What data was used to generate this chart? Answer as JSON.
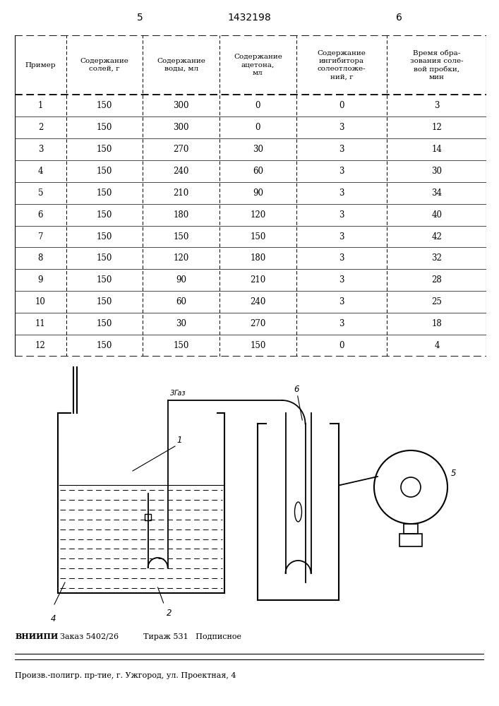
{
  "page_number_left": "5",
  "page_number_center": "1432198",
  "page_number_right": "6",
  "table_headers": [
    "Пример",
    "Содержание\nсолей, г",
    "Содержание\nводы, мл",
    "Содержание\nацетона,\nмл",
    "Содержание\nингибитора\nсолеотложе-\nний, г",
    "Время обра-\nзования соле-\nвой пробки,\nмин"
  ],
  "table_data": [
    [
      "1",
      "150",
      "300",
      "0",
      "0",
      "3"
    ],
    [
      "2",
      "150",
      "300",
      "0",
      "3",
      "12"
    ],
    [
      "3",
      "150",
      "270",
      "30",
      "3",
      "14"
    ],
    [
      "4",
      "150",
      "240",
      "60",
      "3",
      "30"
    ],
    [
      "5",
      "150",
      "210",
      "90",
      "3",
      "34"
    ],
    [
      "6",
      "150",
      "180",
      "120",
      "3",
      "40"
    ],
    [
      "7",
      "150",
      "150",
      "150",
      "3",
      "42"
    ],
    [
      "8",
      "150",
      "120",
      "180",
      "3",
      "32"
    ],
    [
      "9",
      "150",
      "90",
      "210",
      "3",
      "28"
    ],
    [
      "10",
      "150",
      "60",
      "240",
      "3",
      "25"
    ],
    [
      "11",
      "150",
      "30",
      "270",
      "3",
      "18"
    ],
    [
      "12",
      "150",
      "150",
      "150",
      "0",
      "4"
    ]
  ],
  "footer_bold": "ВНИИПИ",
  "footer_line1_rest": "  Заказ 5402/26          Тираж 531   Подписное",
  "footer_line2": "Произв.-полигр. пр-тие, г. Ужгород, ул. Проектная, 4",
  "bg_color": "#ffffff"
}
